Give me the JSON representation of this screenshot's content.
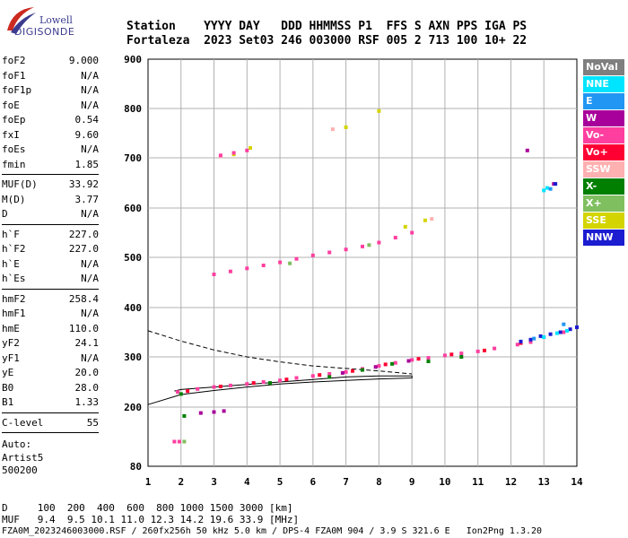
{
  "logo": {
    "line1": "Lowell",
    "line2": "DIGISONDE"
  },
  "header": {
    "line1": "Station    YYYY DAY   DDD HHMMSS P1  FFS S AXN PPS IGA PS",
    "line2": "Fortaleza  2023 Set03 246 003000 RSF 005 2 713 100 10+ 22"
  },
  "params": {
    "g1": [
      {
        "k": "foF2",
        "v": "9.000"
      },
      {
        "k": "foF1",
        "v": "N/A"
      },
      {
        "k": "foF1p",
        "v": "N/A"
      },
      {
        "k": "foE",
        "v": "N/A"
      },
      {
        "k": "foEp",
        "v": "0.54"
      },
      {
        "k": "fxI",
        "v": "9.60"
      },
      {
        "k": "foEs",
        "v": "N/A"
      },
      {
        "k": "fmin",
        "v": "1.85"
      }
    ],
    "g2": [
      {
        "k": "MUF(D)",
        "v": "33.92"
      },
      {
        "k": "M(D)",
        "v": "3.77"
      },
      {
        "k": "D",
        "v": "N/A"
      }
    ],
    "g3": [
      {
        "k": "h`F",
        "v": "227.0"
      },
      {
        "k": "h`F2",
        "v": "227.0"
      },
      {
        "k": "h`E",
        "v": "N/A"
      },
      {
        "k": "h`Es",
        "v": "N/A"
      }
    ],
    "g4": [
      {
        "k": "hmF2",
        "v": "258.4"
      },
      {
        "k": "hmF1",
        "v": "N/A"
      },
      {
        "k": "hmE",
        "v": "110.0"
      },
      {
        "k": "yF2",
        "v": "24.1"
      },
      {
        "k": "yF1",
        "v": "N/A"
      },
      {
        "k": "yE",
        "v": "20.0"
      },
      {
        "k": "B0",
        "v": "28.0"
      },
      {
        "k": "B1",
        "v": "1.33"
      }
    ],
    "g5": [
      {
        "k": "C-level",
        "v": "55"
      }
    ]
  },
  "auto": {
    "l1": "Auto:",
    "l2": "Artist5",
    "l3": "500200"
  },
  "legend": [
    {
      "label": "NoVal",
      "color": "#7f7f7f"
    },
    {
      "label": "NNE",
      "color": "#00e5ff"
    },
    {
      "label": "E",
      "color": "#2196f3"
    },
    {
      "label": "W",
      "color": "#a8009b"
    },
    {
      "label": "Vo-",
      "color": "#ff3fa0"
    },
    {
      "label": "Vo+",
      "color": "#ff0033"
    },
    {
      "label": "SSW",
      "color": "#ffb0b0"
    },
    {
      "label": "X-",
      "color": "#007f00"
    },
    {
      "label": "X+",
      "color": "#7fbf5f"
    },
    {
      "label": "SSE",
      "color": "#d4d400"
    },
    {
      "label": "NNW",
      "color": "#1c1cd0"
    }
  ],
  "footer": {
    "d": "D     100  200  400  600  800 1000 1500 3000 [km]",
    "muf": "MUF   9.4  9.5 10.1 11.0 12.3 14.2 19.6 33.9 [MHz]",
    "file": "FZA0M_2023246003000.RSF / 260fx256h 50 kHz 5.0 km / DPS-4 FZA0M 904 / 3.9 S 321.6 E   Ion2Png 1.3.20"
  },
  "chart_data": {
    "type": "scatter",
    "x_ticks": [
      "1",
      "2",
      "3",
      "4",
      "5",
      "6",
      "7",
      "8",
      "9",
      "10",
      "11",
      "12",
      "13",
      "14"
    ],
    "y_ticks": [
      "80",
      "200",
      "300",
      "400",
      "500",
      "600",
      "700",
      "800",
      "900"
    ],
    "xlim": [
      1,
      14
    ],
    "ylim": [
      80,
      900
    ],
    "x_unit": "MHz",
    "y_unit": "km",
    "grid": true,
    "series": [
      {
        "name": "Vo-",
        "color": "#ff3fa0",
        "points": [
          [
            1.9,
            230
          ],
          [
            2.5,
            236
          ],
          [
            3,
            240
          ],
          [
            3.5,
            243
          ],
          [
            4,
            246
          ],
          [
            4.5,
            250
          ],
          [
            5,
            253
          ],
          [
            5.5,
            258
          ],
          [
            6,
            262
          ],
          [
            6.5,
            266
          ],
          [
            7,
            270
          ],
          [
            7.5,
            276
          ],
          [
            8,
            282
          ],
          [
            8.5,
            288
          ],
          [
            9,
            294
          ],
          [
            9.5,
            298
          ],
          [
            10,
            303
          ],
          [
            10.5,
            307
          ],
          [
            11,
            311
          ],
          [
            11.5,
            317
          ],
          [
            12.2,
            325
          ],
          [
            12.6,
            330
          ],
          [
            13,
            340
          ],
          [
            13.6,
            350
          ]
        ]
      },
      {
        "name": "Vo+",
        "color": "#ff0033",
        "points": [
          [
            2.2,
            232
          ],
          [
            3.2,
            241
          ],
          [
            4.2,
            248
          ],
          [
            5.2,
            255
          ],
          [
            6.2,
            264
          ],
          [
            7.2,
            272
          ],
          [
            8.2,
            285
          ],
          [
            9.2,
            296
          ],
          [
            10.2,
            305
          ],
          [
            11.2,
            313
          ],
          [
            12.3,
            328
          ]
        ]
      },
      {
        "name": "X-",
        "color": "#007f00",
        "points": [
          [
            2.0,
            226
          ],
          [
            2.1,
            182
          ],
          [
            4.7,
            248
          ],
          [
            6.5,
            260
          ],
          [
            7.5,
            274
          ],
          [
            8.4,
            286
          ],
          [
            9.5,
            291
          ],
          [
            10.5,
            300
          ]
        ]
      },
      {
        "name": "W",
        "color": "#a8009b",
        "points": [
          [
            2.6,
            188
          ],
          [
            3.0,
            190
          ],
          [
            3.3,
            192
          ],
          [
            6.9,
            268
          ],
          [
            7.9,
            280
          ],
          [
            8.9,
            292
          ],
          [
            12.5,
            715
          ],
          [
            13.3,
            648
          ]
        ]
      },
      {
        "name": "NNW",
        "color": "#1c1cd0",
        "points": [
          [
            12.3,
            331
          ],
          [
            12.6,
            335
          ],
          [
            12.9,
            342
          ],
          [
            13.2,
            346
          ],
          [
            13.5,
            350
          ],
          [
            13.8,
            356
          ],
          [
            14,
            360
          ],
          [
            13.35,
            648
          ]
        ]
      },
      {
        "name": "NNE",
        "color": "#00e5ff",
        "points": [
          [
            13.0,
            340
          ],
          [
            13.4,
            348
          ],
          [
            13.7,
            353
          ],
          [
            13.0,
            635
          ],
          [
            13.1,
            640
          ]
        ]
      },
      {
        "name": "E",
        "color": "#2196f3",
        "points": [
          [
            12.7,
            337
          ],
          [
            13.6,
            366
          ],
          [
            13.2,
            638
          ]
        ]
      },
      {
        "name": "SSE",
        "color": "#d4d400",
        "points": [
          [
            3.0,
            466
          ],
          [
            3.6,
            707
          ],
          [
            4.1,
            720
          ],
          [
            7.0,
            762
          ],
          [
            8.0,
            795
          ],
          [
            8.8,
            562
          ],
          [
            9.4,
            575
          ]
        ]
      },
      {
        "name": "SSW",
        "color": "#ffb0b0",
        "points": [
          [
            3.2,
            703
          ],
          [
            6.6,
            758
          ],
          [
            9.6,
            578
          ]
        ]
      },
      {
        "name": "X+",
        "color": "#7fbf5f",
        "points": [
          [
            2.1,
            130
          ],
          [
            5.3,
            488
          ],
          [
            7.7,
            525
          ]
        ]
      },
      {
        "name": "2nd hop Vo-",
        "color": "#ff3fa0",
        "points": [
          [
            3.0,
            466
          ],
          [
            3.5,
            472
          ],
          [
            4.0,
            478
          ],
          [
            4.5,
            484
          ],
          [
            5.0,
            490
          ],
          [
            5.5,
            497
          ],
          [
            6.0,
            504
          ],
          [
            6.5,
            510
          ],
          [
            7.0,
            516
          ],
          [
            7.5,
            522
          ],
          [
            8.0,
            530
          ],
          [
            8.5,
            540
          ],
          [
            9.0,
            550
          ],
          [
            3.2,
            705
          ],
          [
            3.6,
            710
          ],
          [
            4.0,
            715
          ],
          [
            1.8,
            130
          ],
          [
            1.95,
            130
          ]
        ]
      }
    ],
    "lines": [
      {
        "style": "dashed",
        "points": [
          [
            1.0,
            353
          ],
          [
            2.0,
            332
          ],
          [
            3.0,
            314
          ],
          [
            4.0,
            300
          ],
          [
            5.0,
            290
          ],
          [
            6.0,
            282
          ],
          [
            7.0,
            277
          ],
          [
            8.0,
            272
          ],
          [
            9.0,
            266
          ]
        ]
      },
      {
        "style": "solid",
        "points": [
          [
            1.0,
            205
          ],
          [
            2.0,
            225
          ],
          [
            3.0,
            233
          ],
          [
            4.0,
            240
          ],
          [
            5.0,
            246
          ],
          [
            6.0,
            250
          ],
          [
            7.0,
            253
          ],
          [
            8.0,
            256
          ],
          [
            9.0,
            258
          ],
          [
            9.0,
            262
          ],
          [
            8.0,
            262
          ],
          [
            7.0,
            260
          ],
          [
            6.0,
            255
          ],
          [
            5.0,
            250
          ],
          [
            4.0,
            245
          ],
          [
            3.0,
            240
          ],
          [
            2.0,
            235
          ],
          [
            1.8,
            232
          ]
        ]
      }
    ]
  }
}
